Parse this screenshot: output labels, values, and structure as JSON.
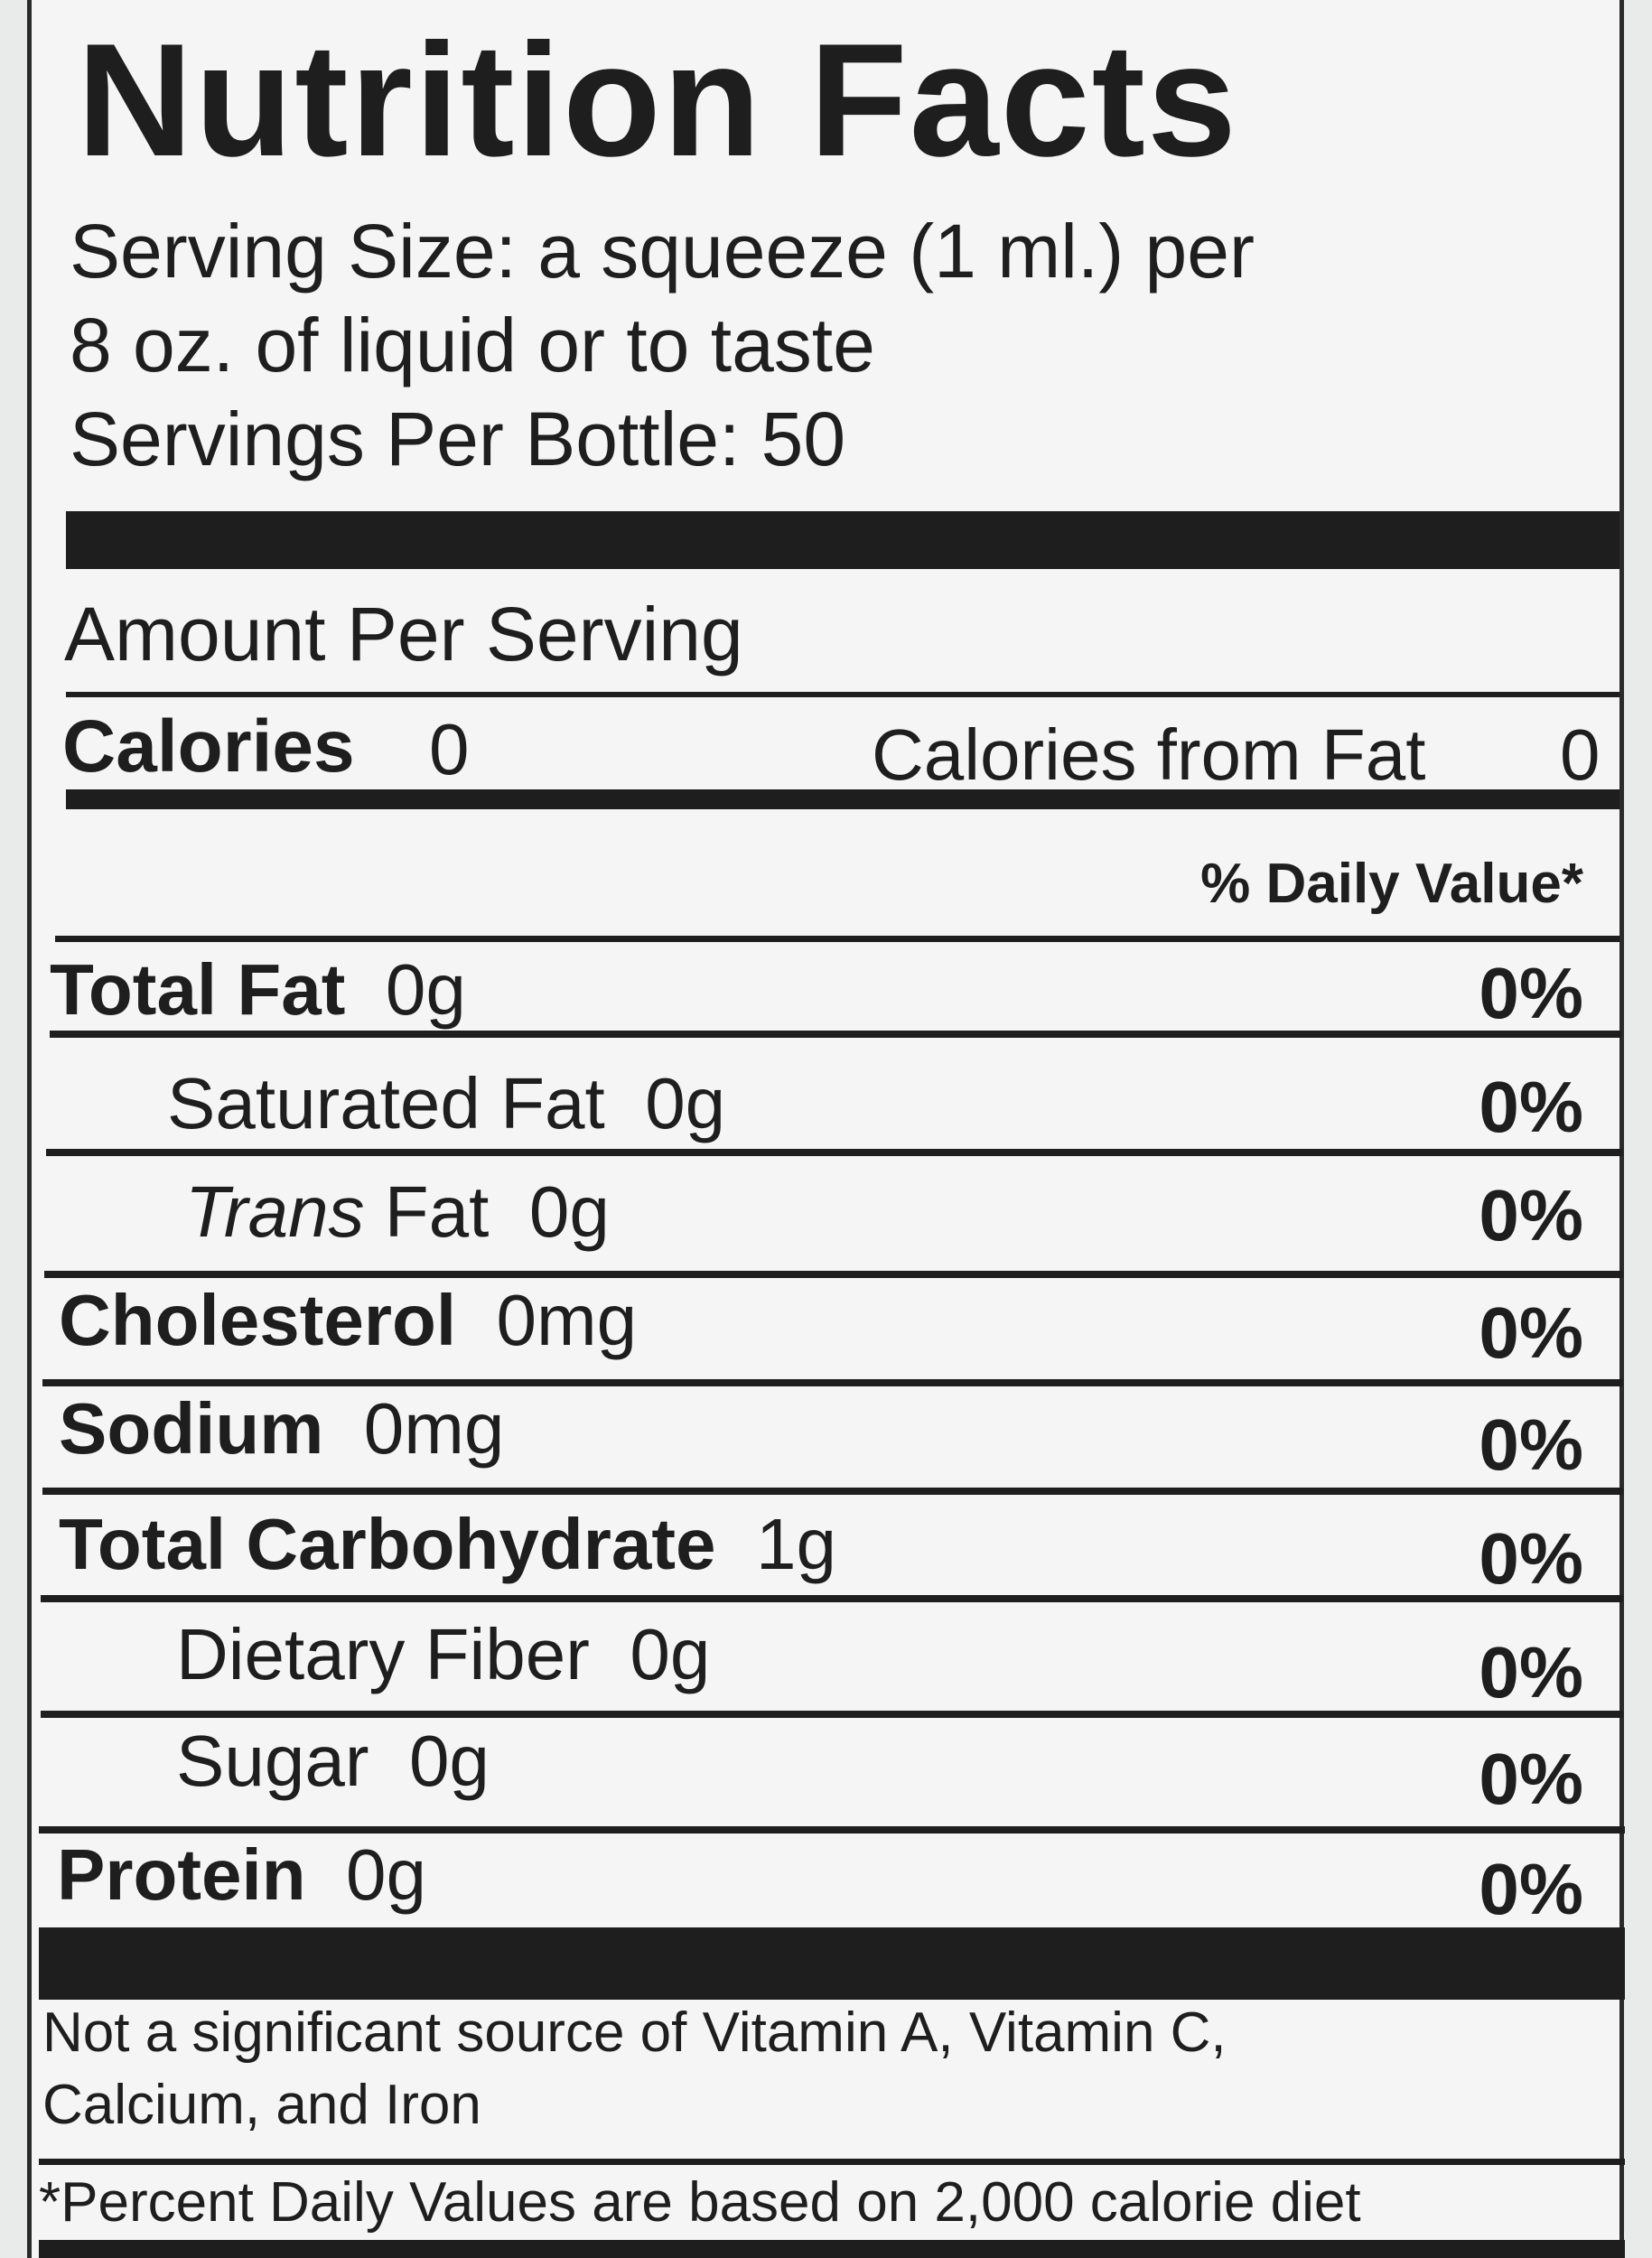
{
  "title": "Nutrition Facts",
  "serving": {
    "line1": "Serving Size: a squeeze (1 ml.) per",
    "line2": "8 oz. of liquid or to taste",
    "line3": "Servings Per Bottle: 50"
  },
  "amount_per_serving": "Amount Per Serving",
  "calories": {
    "label": "Calories",
    "value": "0",
    "from_fat_label": "Calories from Fat",
    "from_fat_value": "0"
  },
  "daily_value_header": "% Daily Value*",
  "nutrients": [
    {
      "name": "Total Fat",
      "amount": "0g",
      "dv": "0%"
    },
    {
      "name": "Saturated Fat",
      "amount": "0g",
      "dv": "0%"
    },
    {
      "name": "Trans",
      "name_suffix": "Fat",
      "amount": "0g",
      "dv": "0%"
    },
    {
      "name": "Cholesterol",
      "amount": "0mg",
      "dv": "0%"
    },
    {
      "name": "Sodium",
      "amount": "0mg",
      "dv": "0%"
    },
    {
      "name": "Total Carbohydrate",
      "amount": "1g",
      "dv": "0%"
    },
    {
      "name": "Dietary Fiber",
      "amount": "0g",
      "dv": "0%"
    },
    {
      "name": "Sugar",
      "amount": "0g",
      "dv": "0%"
    },
    {
      "name": "Protein",
      "amount": "0g",
      "dv": "0%"
    }
  ],
  "footnote": {
    "line1": "Not a significant source of Vitamin A, Vitamin C,",
    "line2": "Calcium, and Iron",
    "line3": "*Percent Daily Values are based on 2,000 calorie diet"
  }
}
